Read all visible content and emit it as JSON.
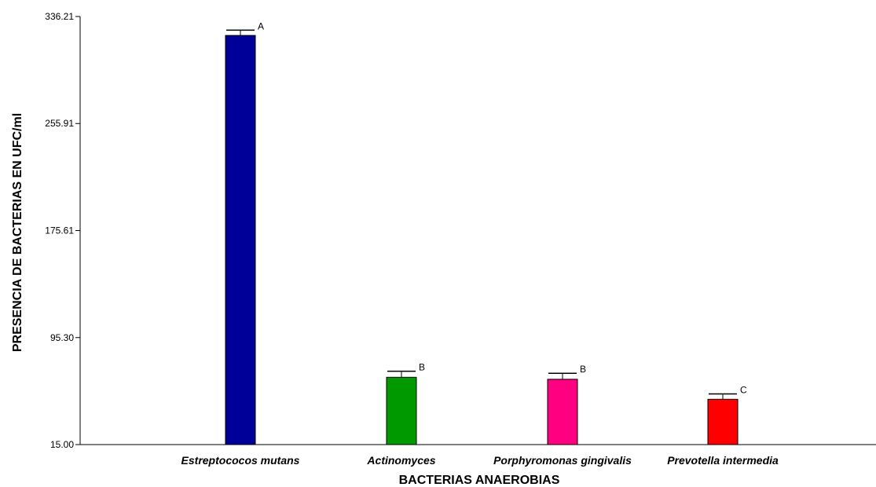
{
  "chart_data": {
    "type": "bar",
    "title": "",
    "xlabel": "BACTERIAS ANAEROBIAS",
    "ylabel": "PRESENCIA DE BACTERIAS EN UFC/ml",
    "ylim": [
      15.0,
      336.21
    ],
    "yticks": [
      "15.00",
      "95.30",
      "175.61",
      "255.91",
      "336.21"
    ],
    "categories": [
      "Estreptococos mutans",
      "Actinomyces",
      "Porphyromonas gingivalis",
      "Prevotella intermedia"
    ],
    "values": [
      322.0,
      65.5,
      64.0,
      49.0
    ],
    "error_upper": [
      326.0,
      70.0,
      68.5,
      53.0
    ],
    "significance_letters": [
      "A",
      "B",
      "B",
      "C"
    ],
    "colors": [
      "#000099",
      "#009900",
      "#ff0080",
      "#ff0000"
    ],
    "grid": false,
    "legend": "none"
  }
}
